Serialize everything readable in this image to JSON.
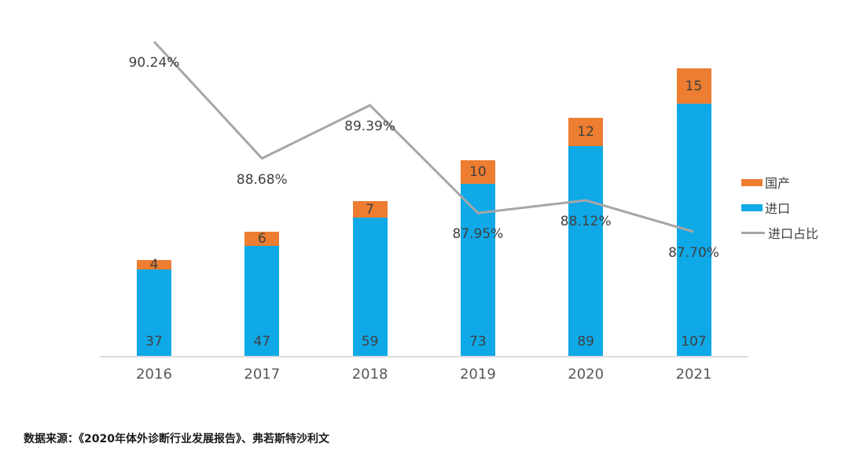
{
  "chart_data": {
    "type": "bar",
    "subtype": "stacked-column-with-line",
    "title": "",
    "categories": [
      "2016",
      "2017",
      "2018",
      "2019",
      "2020",
      "2021"
    ],
    "bar_series": [
      {
        "name": "进口",
        "color": "#0fa9e8",
        "values": [
          37,
          47,
          59,
          73,
          89,
          107
        ]
      },
      {
        "name": "国产",
        "color": "#ed7d31",
        "values": [
          4,
          6,
          7,
          10,
          12,
          15
        ]
      }
    ],
    "line_series": {
      "name": "进口占比",
      "color": "#a6a6a6",
      "unit": "%",
      "values": [
        90.24,
        88.68,
        89.39,
        87.95,
        88.12,
        87.7
      ],
      "labels": [
        "90.24%",
        "88.68%",
        "89.39%",
        "87.95%",
        "88.12%",
        "87.70%"
      ]
    },
    "value_axis": {
      "visible": false,
      "min": 0
    },
    "gridlines": false,
    "legend": {
      "position": "right",
      "items": [
        {
          "label": "国产",
          "color": "#ed7d31",
          "marker": "rect"
        },
        {
          "label": "进口",
          "color": "#0fa9e8",
          "marker": "rect"
        },
        {
          "label": "进口占比",
          "color": "#a6a6a6",
          "marker": "line"
        }
      ]
    }
  },
  "source_note": "数据来源：《2020年体外诊断行业发展报告》、弗若斯特沙利文",
  "colors": {
    "domestic_orange": "#ed7d31",
    "import_blue": "#0fa9e8",
    "ratio_line_gray": "#a6a6a6",
    "axis_gray": "#dcdcdc",
    "value_label_dark": "#404040",
    "axis_label_gray": "#595959"
  }
}
